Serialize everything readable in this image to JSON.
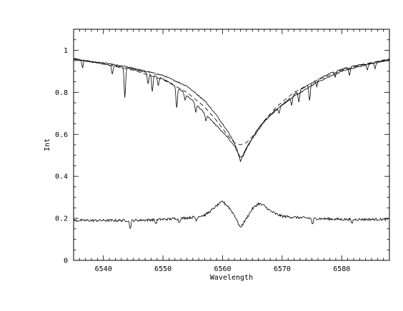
{
  "chart_data": {
    "type": "line",
    "title": "",
    "xlabel": "Wavelength",
    "ylabel": "Int",
    "xlim": [
      6535,
      6588
    ],
    "ylim": [
      0,
      1.1
    ],
    "x_ticks": [
      6540,
      6550,
      6560,
      6570,
      6580
    ],
    "x_tick_labels": [
      "6540",
      "6550",
      "6560",
      "6570",
      "6580"
    ],
    "y_ticks": [
      0,
      0.2,
      0.4,
      0.6,
      0.8,
      1
    ],
    "y_tick_labels": [
      "0",
      "0.2",
      "0.4",
      "0.6",
      "0.8",
      "1"
    ],
    "grid": false,
    "legend": "none",
    "line_color": "#000000",
    "series": [
      {
        "style": "solid",
        "x": [
          6535,
          6537,
          6539,
          6541,
          6543,
          6545,
          6547,
          6549,
          6551,
          6553,
          6555,
          6557,
          6559,
          6560,
          6561,
          6562,
          6562.6,
          6563,
          6563.5,
          6564,
          6565,
          6566,
          6567,
          6568,
          6570,
          6572,
          6574,
          6576,
          6578,
          6580,
          6582,
          6584,
          6586,
          6588
        ],
        "y": [
          0.96,
          0.95,
          0.94,
          0.93,
          0.92,
          0.91,
          0.895,
          0.875,
          0.85,
          0.81,
          0.76,
          0.7,
          0.64,
          0.61,
          0.58,
          0.545,
          0.51,
          0.49,
          0.5,
          0.53,
          0.58,
          0.63,
          0.66,
          0.69,
          0.74,
          0.79,
          0.83,
          0.86,
          0.89,
          0.91,
          0.925,
          0.935,
          0.945,
          0.955
        ],
        "absorption_lines": [
          [
            6536.5,
            0.035
          ],
          [
            6541.5,
            0.04
          ],
          [
            6543.6,
            0.14
          ],
          [
            6547.5,
            0.05
          ],
          [
            6548.2,
            0.08
          ],
          [
            6549.2,
            0.04
          ],
          [
            6552.3,
            0.1
          ],
          [
            6553.7,
            0.03
          ],
          [
            6555.5,
            0.04
          ],
          [
            6557.2,
            0.03
          ],
          [
            6569.5,
            0.03
          ],
          [
            6571.6,
            0.04
          ],
          [
            6572.8,
            0.05
          ],
          [
            6574.6,
            0.08
          ],
          [
            6575.8,
            0.03
          ],
          [
            6578.9,
            0.03
          ],
          [
            6581.3,
            0.04
          ],
          [
            6584.3,
            0.03
          ],
          [
            6585.6,
            0.03
          ]
        ]
      },
      {
        "style": "solid",
        "x": [
          6535,
          6540,
          6545,
          6550,
          6554,
          6557,
          6559,
          6560.5,
          6561.5,
          6562.3,
          6563,
          6563.7,
          6564.5,
          6565.5,
          6567,
          6569,
          6572,
          6576,
          6580,
          6584,
          6588
        ],
        "y": [
          0.955,
          0.94,
          0.915,
          0.88,
          0.83,
          0.76,
          0.69,
          0.63,
          0.585,
          0.54,
          0.47,
          0.52,
          0.56,
          0.6,
          0.66,
          0.72,
          0.78,
          0.85,
          0.9,
          0.93,
          0.955
        ]
      },
      {
        "style": "dashed",
        "x": [
          6535,
          6540,
          6545,
          6550,
          6554,
          6557,
          6559,
          6561,
          6562,
          6563,
          6564,
          6565,
          6567,
          6569,
          6572,
          6576,
          6580,
          6584,
          6588
        ],
        "y": [
          0.96,
          0.935,
          0.905,
          0.86,
          0.8,
          0.73,
          0.665,
          0.59,
          0.56,
          0.55,
          0.56,
          0.59,
          0.665,
          0.73,
          0.8,
          0.86,
          0.905,
          0.935,
          0.96
        ]
      },
      {
        "style": "solid",
        "x": [
          6535,
          6540,
          6545,
          6550,
          6553,
          6555,
          6557,
          6558,
          6559,
          6560,
          6561,
          6562,
          6563,
          6564,
          6565,
          6566,
          6567,
          6568,
          6569,
          6570,
          6572,
          6575,
          6580,
          6588
        ],
        "y": [
          0.19,
          0.19,
          0.19,
          0.195,
          0.2,
          0.205,
          0.215,
          0.235,
          0.26,
          0.28,
          0.255,
          0.215,
          0.155,
          0.2,
          0.245,
          0.27,
          0.26,
          0.235,
          0.22,
          0.21,
          0.205,
          0.2,
          0.195,
          0.195
        ],
        "absorption_lines": [
          [
            6544.5,
            0.04
          ],
          [
            6548.8,
            0.02
          ],
          [
            6552.7,
            0.02
          ],
          [
            6555.6,
            0.02
          ],
          [
            6575.1,
            0.03
          ],
          [
            6581.7,
            0.02
          ]
        ]
      }
    ]
  }
}
